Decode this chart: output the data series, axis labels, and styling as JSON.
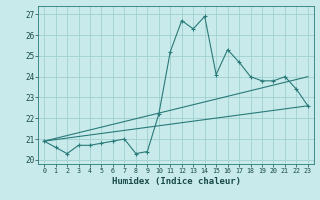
{
  "xlabel": "Humidex (Indice chaleur)",
  "ylabel": "",
  "background_color": "#c8eaea",
  "grid_color": "#a0d0d0",
  "line_color": "#2a7a7a",
  "xlim": [
    -0.5,
    23.5
  ],
  "ylim": [
    19.8,
    27.4
  ],
  "xticks": [
    0,
    1,
    2,
    3,
    4,
    5,
    6,
    7,
    8,
    9,
    10,
    11,
    12,
    13,
    14,
    15,
    16,
    17,
    18,
    19,
    20,
    21,
    22,
    23
  ],
  "yticks": [
    20,
    21,
    22,
    23,
    24,
    25,
    26,
    27
  ],
  "line1_x": [
    0,
    1,
    2,
    3,
    4,
    5,
    6,
    7,
    8,
    9,
    10,
    11,
    12,
    13,
    14,
    15,
    16,
    17,
    18,
    19,
    20,
    21,
    22,
    23
  ],
  "line1_y": [
    20.9,
    20.6,
    20.3,
    20.7,
    20.7,
    20.8,
    20.9,
    21.0,
    20.3,
    20.4,
    22.2,
    25.2,
    26.7,
    26.3,
    26.9,
    24.1,
    25.3,
    24.7,
    24.0,
    23.8,
    23.8,
    24.0,
    23.4,
    22.6
  ],
  "line2_x": [
    0,
    23
  ],
  "line2_y": [
    20.9,
    22.6
  ],
  "line3_x": [
    0,
    23
  ],
  "line3_y": [
    20.9,
    24.0
  ],
  "figwidth": 3.2,
  "figheight": 2.0,
  "dpi": 100
}
